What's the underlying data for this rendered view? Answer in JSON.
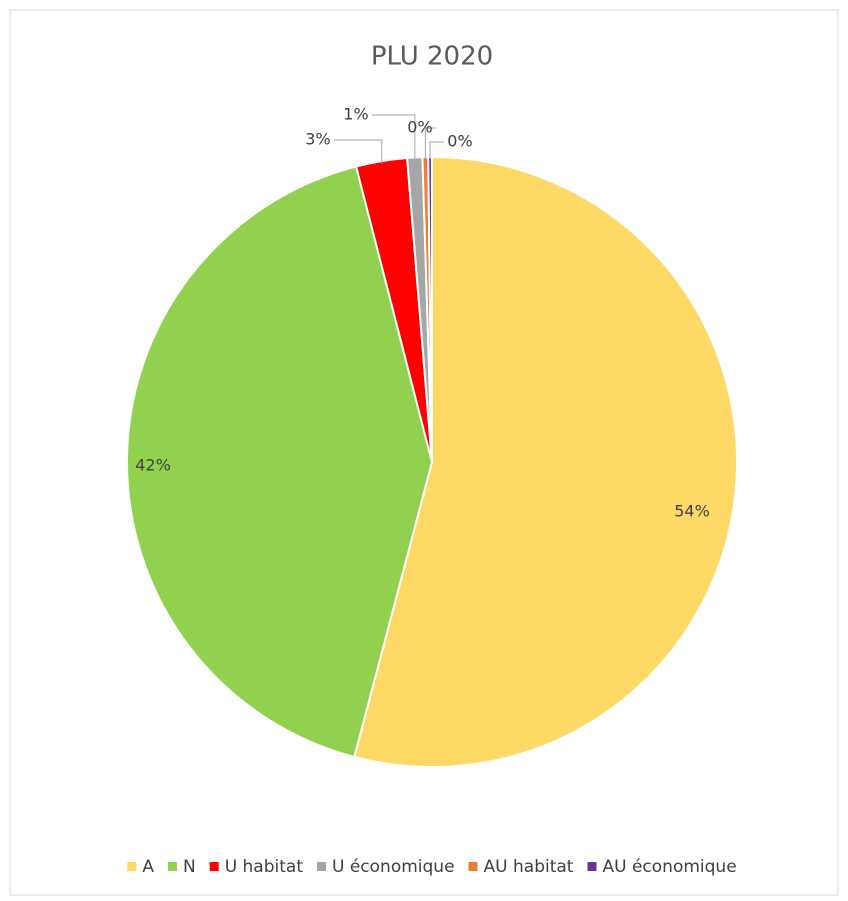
{
  "chart_data": {
    "type": "pie",
    "title": "PLU 2020",
    "categories": [
      "A",
      "N",
      "U habitat",
      "U économique",
      "AU habitat",
      "AU économique"
    ],
    "values": [
      54.1,
      41.9,
      2.7,
      0.8,
      0.3,
      0.2
    ],
    "value_labels": [
      "54%",
      "42%",
      "3%",
      "1%",
      "0%",
      "0%"
    ],
    "colors": [
      "#FFD966",
      "#92D050",
      "#FF0000",
      "#A6A6A6",
      "#ED7D31",
      "#7030A0"
    ],
    "legend": "bottom"
  }
}
